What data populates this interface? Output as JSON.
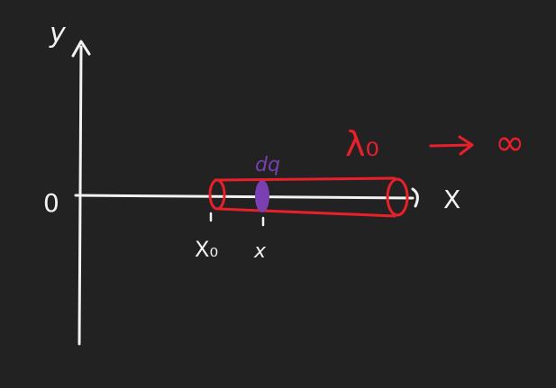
{
  "labels": {
    "y_axis": "y",
    "x_axis": "X",
    "origin": "0",
    "x0": "X₀",
    "x": "x",
    "dq": "dq",
    "lambda0": "λ₀",
    "infinity": "∞"
  },
  "colors": {
    "background": "#222222",
    "axes": "#f2f2f2",
    "rod": "#e8202a",
    "charge_element": "#7a3fb0"
  }
}
